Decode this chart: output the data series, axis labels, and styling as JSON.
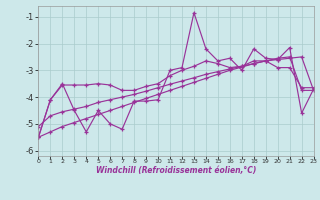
{
  "xlabel": "Windchill (Refroidissement éolien,°C)",
  "bg_color": "#cde8ea",
  "line_color": "#993399",
  "grid_color": "#aacccc",
  "xlim": [
    0,
    23
  ],
  "ylim": [
    -6.2,
    -0.6
  ],
  "yticks": [
    -6,
    -5,
    -4,
    -3,
    -2,
    -1
  ],
  "xticks": [
    0,
    1,
    2,
    3,
    4,
    5,
    6,
    7,
    8,
    9,
    10,
    11,
    12,
    13,
    14,
    15,
    16,
    17,
    18,
    19,
    20,
    21,
    22,
    23
  ],
  "line_jagged": [
    [
      0,
      -5.5
    ],
    [
      1,
      -4.1
    ],
    [
      2,
      -3.5
    ],
    [
      3,
      -4.5
    ],
    [
      4,
      -5.3
    ],
    [
      5,
      -4.5
    ],
    [
      6,
      -5.0
    ],
    [
      7,
      -5.2
    ],
    [
      8,
      -4.15
    ],
    [
      9,
      -4.15
    ],
    [
      10,
      -4.1
    ],
    [
      11,
      -3.0
    ],
    [
      12,
      -2.9
    ],
    [
      13,
      -0.85
    ],
    [
      14,
      -2.2
    ],
    [
      15,
      -2.65
    ],
    [
      16,
      -2.55
    ],
    [
      17,
      -3.0
    ],
    [
      18,
      -2.2
    ],
    [
      19,
      -2.55
    ],
    [
      20,
      -2.6
    ],
    [
      21,
      -2.15
    ],
    [
      22,
      -4.6
    ],
    [
      23,
      -3.7
    ]
  ],
  "line_mid": [
    [
      0,
      -5.5
    ],
    [
      1,
      -4.1
    ],
    [
      2,
      -3.55
    ],
    [
      3,
      -3.55
    ],
    [
      4,
      -3.55
    ],
    [
      5,
      -3.5
    ],
    [
      6,
      -3.55
    ],
    [
      7,
      -3.75
    ],
    [
      8,
      -3.75
    ],
    [
      9,
      -3.6
    ],
    [
      10,
      -3.5
    ],
    [
      11,
      -3.2
    ],
    [
      12,
      -3.0
    ],
    [
      13,
      -2.85
    ],
    [
      14,
      -2.65
    ],
    [
      15,
      -2.75
    ],
    [
      16,
      -2.9
    ],
    [
      17,
      -2.85
    ],
    [
      18,
      -2.65
    ],
    [
      19,
      -2.65
    ],
    [
      20,
      -2.9
    ],
    [
      21,
      -2.9
    ],
    [
      22,
      -3.65
    ],
    [
      23,
      -3.65
    ]
  ],
  "line_upper": [
    [
      0,
      -5.1
    ],
    [
      1,
      -4.7
    ],
    [
      2,
      -4.55
    ],
    [
      3,
      -4.45
    ],
    [
      4,
      -4.35
    ],
    [
      5,
      -4.2
    ],
    [
      6,
      -4.1
    ],
    [
      7,
      -4.0
    ],
    [
      8,
      -3.9
    ],
    [
      9,
      -3.78
    ],
    [
      10,
      -3.65
    ],
    [
      11,
      -3.52
    ],
    [
      12,
      -3.4
    ],
    [
      13,
      -3.28
    ],
    [
      14,
      -3.15
    ],
    [
      15,
      -3.05
    ],
    [
      16,
      -2.95
    ],
    [
      17,
      -2.85
    ],
    [
      18,
      -2.75
    ],
    [
      19,
      -2.65
    ],
    [
      20,
      -2.6
    ],
    [
      21,
      -2.55
    ],
    [
      22,
      -2.5
    ],
    [
      23,
      -3.75
    ]
  ],
  "line_lower": [
    [
      0,
      -5.5
    ],
    [
      1,
      -5.3
    ],
    [
      2,
      -5.1
    ],
    [
      3,
      -4.95
    ],
    [
      4,
      -4.8
    ],
    [
      5,
      -4.65
    ],
    [
      6,
      -4.5
    ],
    [
      7,
      -4.35
    ],
    [
      8,
      -4.2
    ],
    [
      9,
      -4.05
    ],
    [
      10,
      -3.9
    ],
    [
      11,
      -3.75
    ],
    [
      12,
      -3.6
    ],
    [
      13,
      -3.45
    ],
    [
      14,
      -3.3
    ],
    [
      15,
      -3.15
    ],
    [
      16,
      -3.0
    ],
    [
      17,
      -2.88
    ],
    [
      18,
      -2.75
    ],
    [
      19,
      -2.65
    ],
    [
      20,
      -2.55
    ],
    [
      21,
      -2.5
    ],
    [
      22,
      -3.75
    ],
    [
      23,
      -3.75
    ]
  ]
}
